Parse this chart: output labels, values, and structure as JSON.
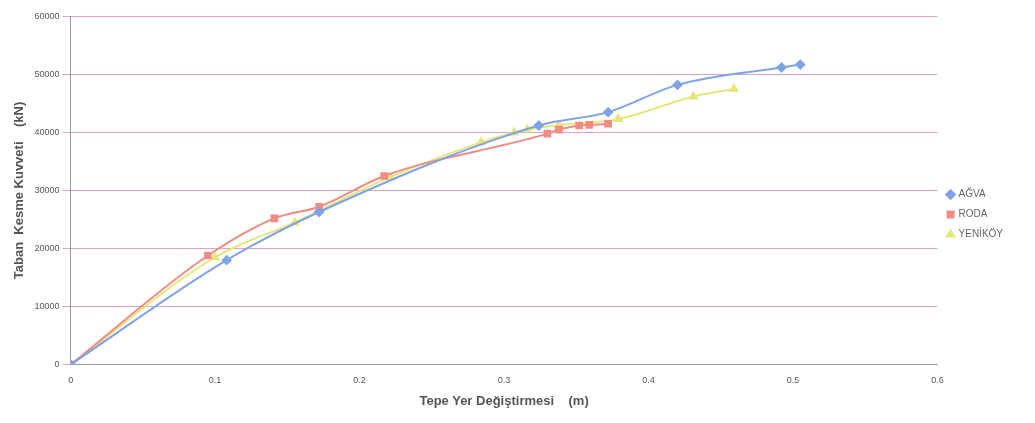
{
  "chart_data": {
    "type": "line",
    "xlabel": "Tepe Yer Değiştirmesi    (m)",
    "ylabel": "Taban  Kesme Kuvveti    (kN)",
    "xlim": [
      0,
      0.6
    ],
    "xticks": [
      0,
      0.1,
      0.2,
      0.3,
      0.4,
      0.5,
      0.6
    ],
    "ylim": [
      0,
      60000
    ],
    "yticks": [
      0,
      10000,
      20000,
      30000,
      40000,
      50000,
      60000
    ],
    "grid": "y",
    "legend": "right",
    "line_style": "solid",
    "series": [
      {
        "name": "AĞVA",
        "color": "#7ea3e6",
        "marker": "diamond",
        "x": [
          0,
          0.108,
          0.172,
          0.324,
          0.372,
          0.42,
          0.492,
          0.505
        ],
        "values": [
          0,
          18000,
          26300,
          41200,
          43500,
          48200,
          51200,
          51700
        ]
      },
      {
        "name": "RODA",
        "color": "#f28b82",
        "marker": "square",
        "x": [
          0,
          0.095,
          0.141,
          0.172,
          0.217,
          0.33,
          0.338,
          0.352,
          0.359,
          0.372
        ],
        "values": [
          0,
          18800,
          25200,
          27200,
          32500,
          39800,
          40500,
          41200,
          41300,
          41500
        ]
      },
      {
        "name": "YENİKÖY",
        "color": "#e6e67a",
        "marker": "triangle",
        "x": [
          0,
          0.1,
          0.155,
          0.221,
          0.284,
          0.307,
          0.316,
          0.338,
          0.379,
          0.431,
          0.459
        ],
        "values": [
          0,
          18500,
          24500,
          32300,
          38300,
          40000,
          40500,
          41300,
          42300,
          46200,
          47500
        ]
      }
    ]
  }
}
